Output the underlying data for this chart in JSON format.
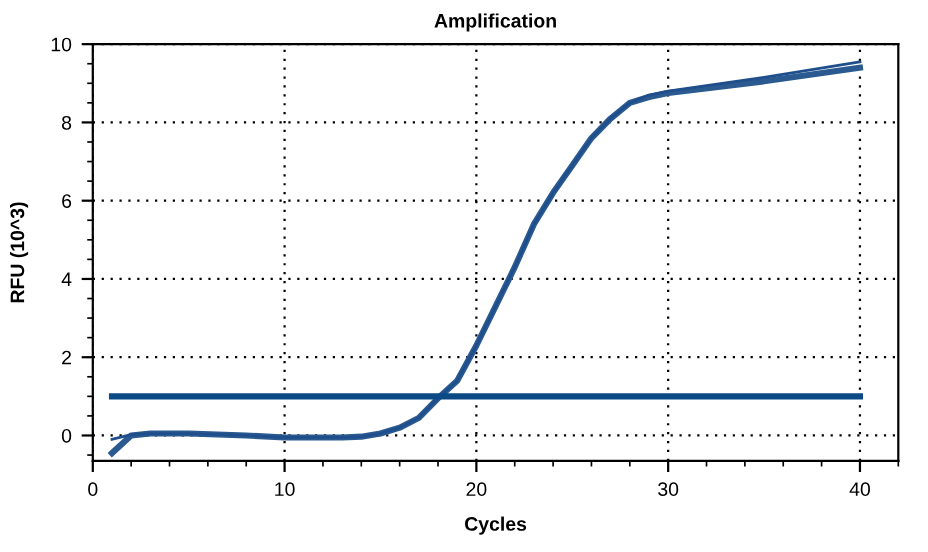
{
  "chart_data": {
    "type": "line",
    "title": "Amplification",
    "xlabel": "Cycles",
    "ylabel": "RFU (10^3)",
    "x": [
      1,
      2,
      3,
      5,
      8,
      10,
      13,
      14,
      15,
      16,
      17,
      18,
      19,
      20,
      21,
      22,
      23,
      24,
      25,
      26,
      27,
      28,
      29,
      30,
      35,
      40
    ],
    "series": [
      {
        "color": "#2a5a8f",
        "values": [
          -0.45,
          0.0,
          0.05,
          0.05,
          0.0,
          -0.05,
          -0.05,
          -0.03,
          0.05,
          0.2,
          0.45,
          0.95,
          1.4,
          2.3,
          3.3,
          4.3,
          5.4,
          6.2,
          6.9,
          7.6,
          8.1,
          8.5,
          8.65,
          8.75,
          9.05,
          9.4
        ]
      },
      {
        "color": "#1f4e8c",
        "values": [
          -0.1,
          0.02,
          0.05,
          0.05,
          0.0,
          -0.05,
          -0.05,
          -0.03,
          0.05,
          0.2,
          0.45,
          0.95,
          1.4,
          2.3,
          3.3,
          4.3,
          5.4,
          6.2,
          6.9,
          7.6,
          8.1,
          8.5,
          8.7,
          8.8,
          9.15,
          9.55
        ]
      },
      {
        "color": "#0b4a85",
        "x": [
          1,
          40
        ],
        "values": [
          1,
          1
        ]
      }
    ],
    "xlim": [
      0,
      42
    ],
    "ylim": [
      -0.65,
      10
    ],
    "xticks": [
      0,
      10,
      20,
      30,
      40
    ],
    "yticks": [
      0,
      2,
      4,
      6,
      8,
      10
    ],
    "grid": true,
    "marker": "none",
    "line_style": "solid"
  }
}
